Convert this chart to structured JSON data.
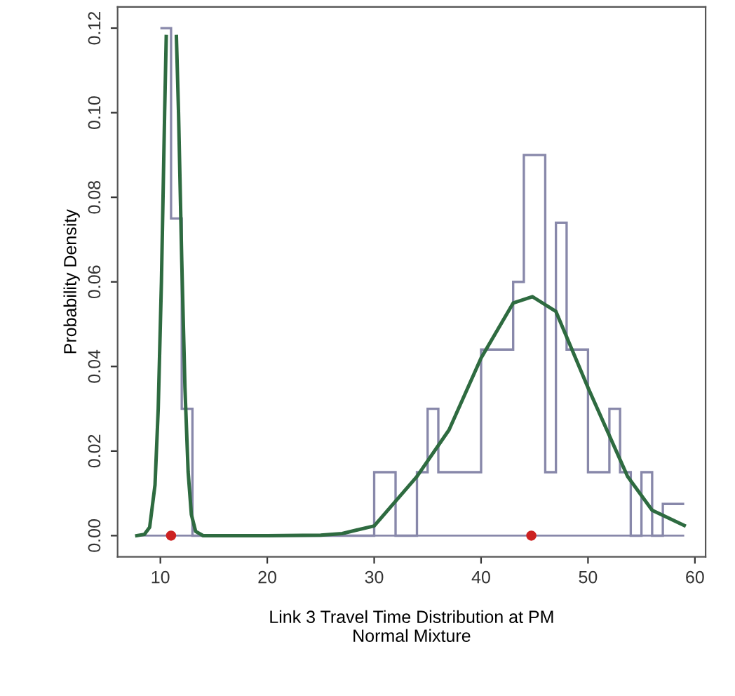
{
  "chart_data": {
    "type": "histogram",
    "xlabel": "Link 3 Travel Time Distribution at PM\nNormal Mixture",
    "ylabel": "Probability Density",
    "bins": [
      10,
      11,
      12,
      13,
      30,
      32,
      34,
      35,
      36,
      40,
      43,
      44,
      46,
      47,
      48,
      50,
      52,
      53,
      54,
      55,
      56,
      57,
      59
    ],
    "values": [
      0.12,
      0.075,
      0.03,
      0,
      0.015,
      0,
      0.015,
      0.03,
      0.015,
      0.044,
      0.06,
      0.09,
      0.015,
      0.074,
      0.044,
      0.015,
      0.03,
      0.015,
      0,
      0.015,
      0,
      0.0075
    ],
    "color": "#8888aa",
    "series": [
      {
        "type": "line",
        "color": "#2e6b40",
        "x": [
          7.8,
          8.5,
          9,
          9.5,
          9.8,
          10.1,
          10.4,
          10.55,
          null,
          11.5,
          11.7,
          12,
          12.3,
          12.6,
          12.9,
          13.3,
          14,
          20,
          25,
          27,
          30,
          34,
          37,
          40,
          43,
          44.8,
          47,
          50,
          53.7,
          56,
          59
        ],
        "values": [
          0,
          0.0003,
          0.002,
          0.012,
          0.03,
          0.06,
          0.1,
          0.118,
          null,
          0.118,
          0.1,
          0.065,
          0.035,
          0.015,
          0.005,
          0.001,
          0,
          0,
          0.0001,
          0.0005,
          0.0023,
          0.014,
          0.025,
          0.042,
          0.055,
          0.0565,
          0.053,
          0.035,
          0.014,
          0.006,
          0.0024
        ]
      },
      {
        "type": "scatter",
        "color": "#cc2222",
        "x": [
          11,
          44.7
        ],
        "values": [
          0,
          0
        ],
        "marker": "circle"
      }
    ],
    "xlim": [
      6,
      61
    ],
    "ylim": [
      -0.005,
      0.125
    ],
    "xticks": [
      10,
      20,
      30,
      40,
      50,
      60
    ],
    "yticks": [
      {
        "value": 0,
        "label": "0.00"
      },
      {
        "value": 0.02,
        "label": "0.02"
      },
      {
        "value": 0.04,
        "label": "0.04"
      },
      {
        "value": 0.06,
        "label": "0.06"
      },
      {
        "value": 0.08,
        "label": "0.08"
      },
      {
        "value": 0.1,
        "label": "0.10"
      },
      {
        "value": 0.12,
        "label": "0.12"
      }
    ]
  }
}
